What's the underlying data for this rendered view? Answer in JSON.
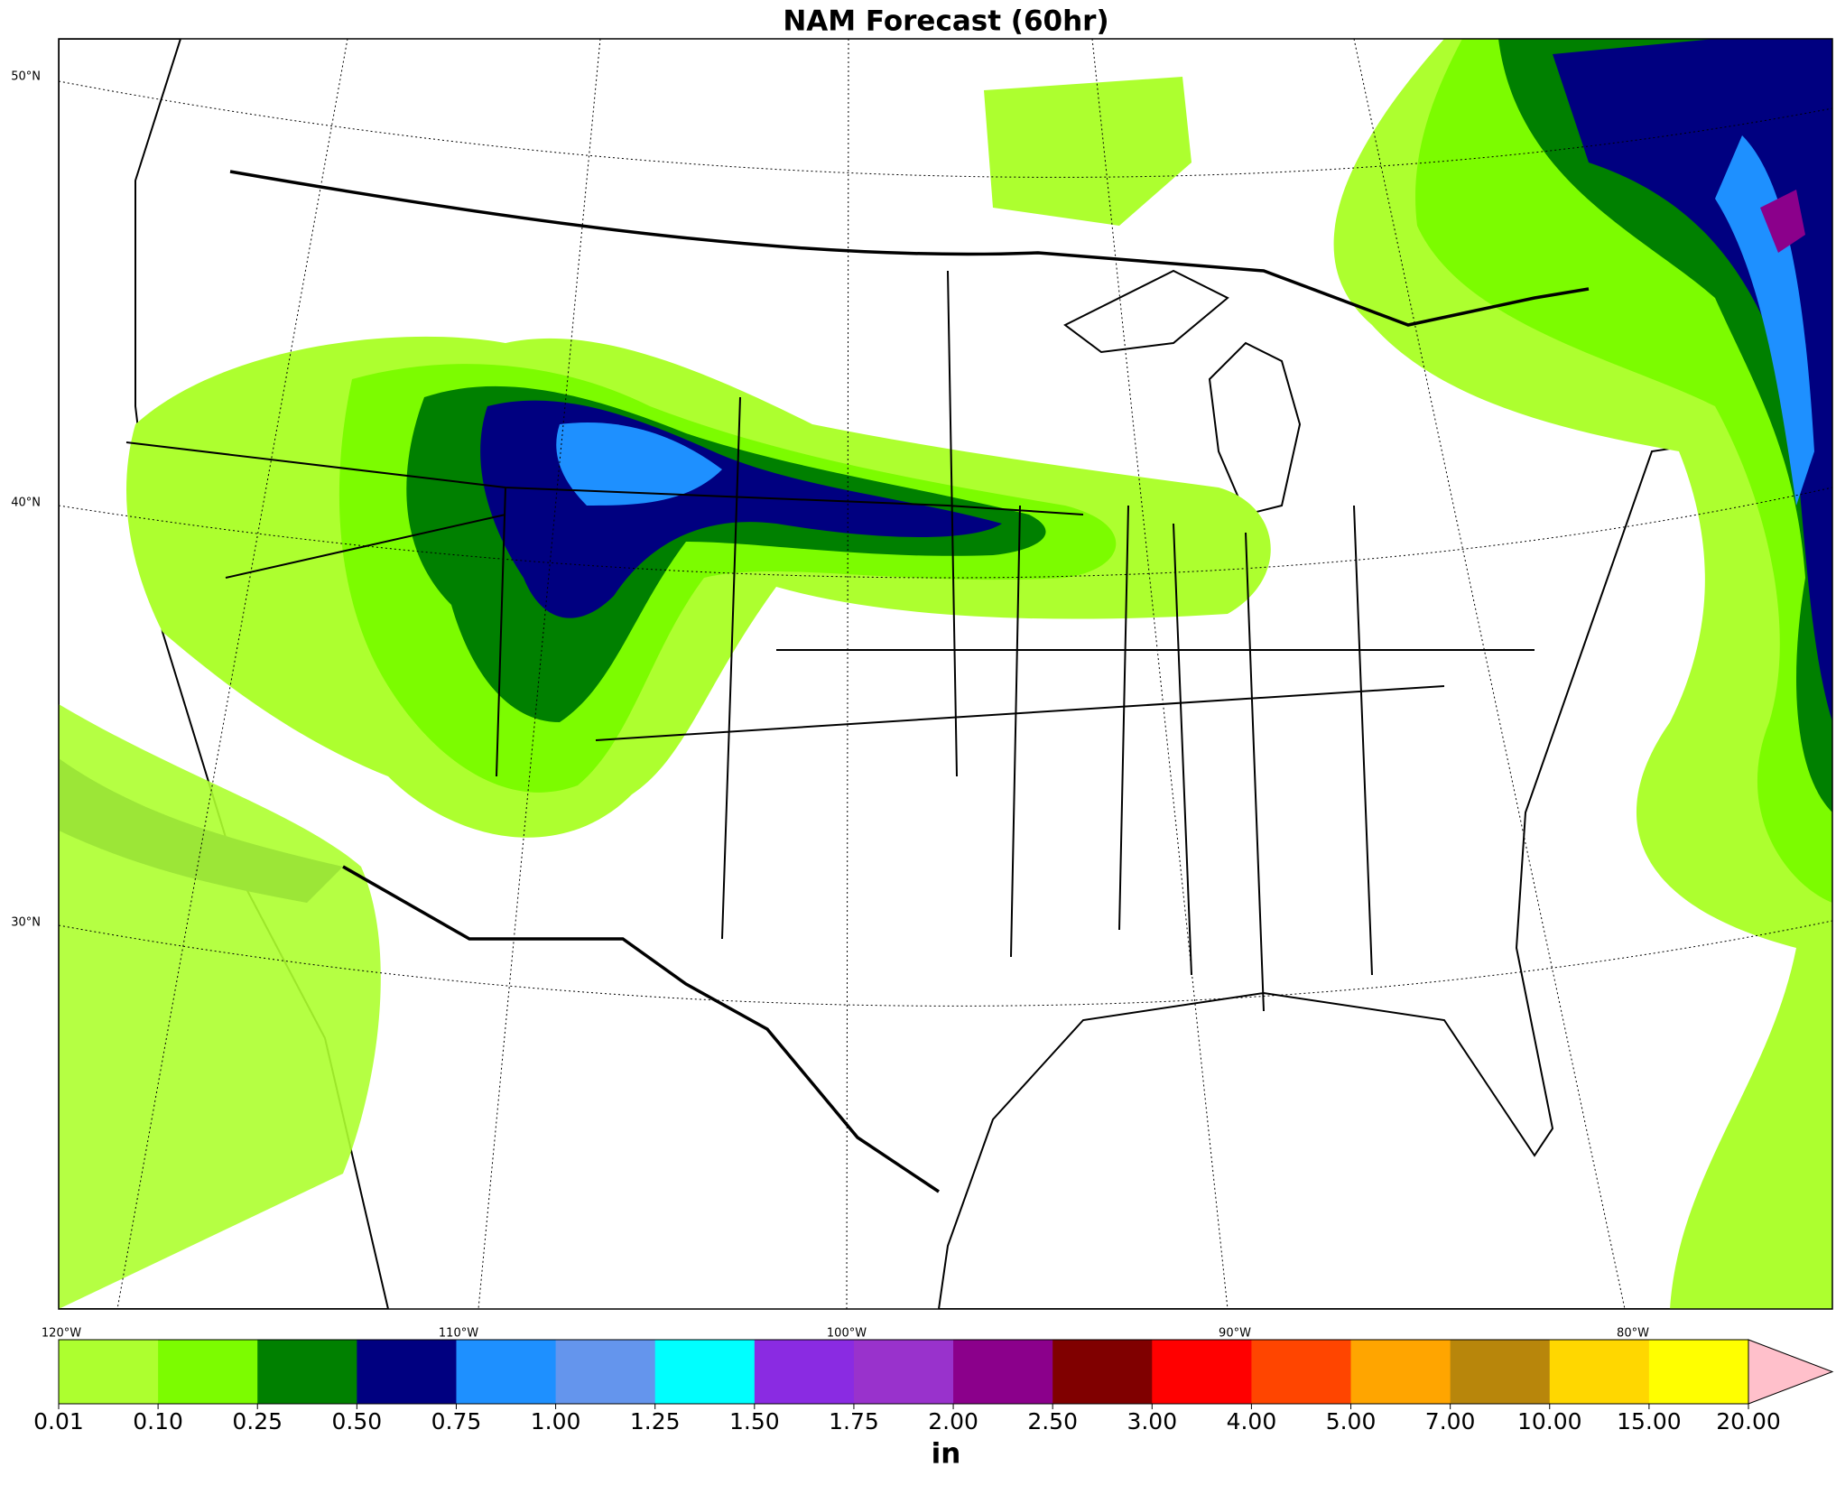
{
  "title": "NAM Forecast (60hr)",
  "map": {
    "lat_labels": [
      "50°N",
      "40°N",
      "30°N"
    ],
    "lon_labels": [
      "120°W",
      "110°W",
      "100°W",
      "90°W",
      "80°W"
    ]
  },
  "colorbar": {
    "label": "in",
    "ticks": [
      {
        "value": 0.01,
        "label": "0.01"
      },
      {
        "value": 0.1,
        "label": "0.10"
      },
      {
        "value": 0.25,
        "label": "0.25"
      },
      {
        "value": 0.5,
        "label": "0.50"
      },
      {
        "value": 0.75,
        "label": "0.75"
      },
      {
        "value": 1,
        "label": "1.00"
      },
      {
        "value": 1.25,
        "label": "1.25"
      },
      {
        "value": 1.5,
        "label": "1.50"
      },
      {
        "value": 1.75,
        "label": "1.75"
      },
      {
        "value": 2,
        "label": "2.00"
      },
      {
        "value": 2.5,
        "label": "2.50"
      },
      {
        "value": 3,
        "label": "3.00"
      },
      {
        "value": 4,
        "label": "4.00"
      },
      {
        "value": 5,
        "label": "5.00"
      },
      {
        "value": 7,
        "label": "7.00"
      },
      {
        "value": 10,
        "label": "10.00"
      },
      {
        "value": 15,
        "label": "15.00"
      },
      {
        "value": 20,
        "label": "20.00"
      }
    ],
    "colors": [
      "#adff2f",
      "#7cfc00",
      "#008000",
      "#000080",
      "#1e90ff",
      "#6495ed",
      "#00ffff",
      "#8a2be2",
      "#9932cc",
      "#8b008b",
      "#800000",
      "#ff0000",
      "#ff4500",
      "#ffa500",
      "#b8860b",
      "#ffd700",
      "#ffff00"
    ],
    "extend_color": "#ffc0cb"
  }
}
